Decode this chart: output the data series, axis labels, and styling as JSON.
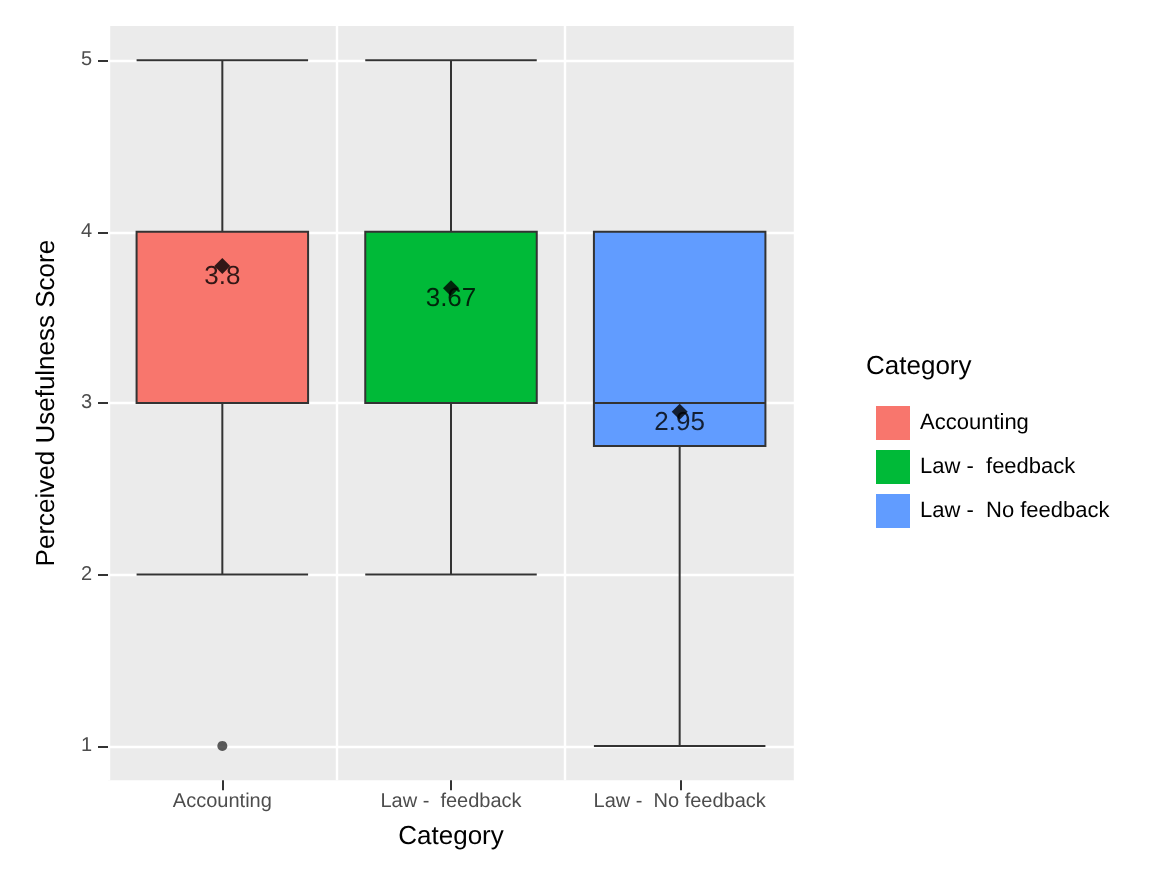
{
  "chart_data": {
    "type": "box",
    "xlabel": "Category",
    "ylabel": "Perceived Usefulness Score",
    "legend_title": "Category",
    "categories": [
      "Accounting",
      "Law -  feedback",
      "Law -  No feedback"
    ],
    "series": [
      {
        "name": "Accounting",
        "color": "#f8766d",
        "boxes": [
          {
            "low": 2,
            "q1": 3,
            "median": 4,
            "q3": 4,
            "high": 5,
            "mean": 3.8,
            "outliers": [
              1
            ]
          },
          null,
          null
        ]
      },
      {
        "name": "Law -  feedback",
        "color": "#00ba38",
        "boxes": [
          null,
          {
            "low": 2,
            "q1": 3,
            "median": 4,
            "q3": 4,
            "high": 5,
            "mean": 3.67
          },
          null
        ]
      },
      {
        "name": "Law -  No feedback",
        "color": "#619cff",
        "boxes": [
          null,
          null,
          {
            "low": 1,
            "q1": 2.75,
            "median": 3,
            "q3": 4,
            "high": 4,
            "mean": 2.95
          }
        ]
      }
    ],
    "annotations": [
      "3.8",
      "3.67",
      "2.95"
    ],
    "ylim": [
      0.8,
      5.2
    ],
    "yticks": [
      1,
      2,
      3,
      4,
      5
    ],
    "grid": true,
    "legend": "right",
    "marker": "diamond"
  }
}
